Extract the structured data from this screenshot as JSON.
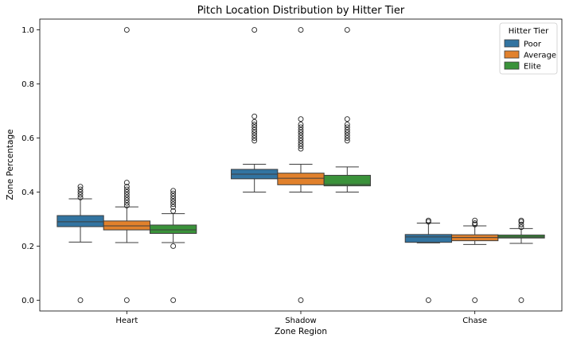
{
  "chart_data": {
    "type": "boxplot",
    "title": "Pitch Location Distribution by Hitter Tier",
    "xlabel": "Zone Region",
    "ylabel": "Zone Percentage",
    "ylim": [
      -0.04,
      1.04
    ],
    "yticks": [
      "0.0",
      "0.2",
      "0.4",
      "0.6",
      "0.8",
      "1.0"
    ],
    "categories": [
      "Heart",
      "Shadow",
      "Chase"
    ],
    "legend": {
      "title": "Hitter Tier",
      "placement": "top-right"
    },
    "colors": {
      "Poor": "#3274a1",
      "Average": "#e1812c",
      "Elite": "#3a923a"
    },
    "series": [
      {
        "name": "Poor",
        "boxes": [
          {
            "whisker_low": 0.215,
            "q1": 0.272,
            "median": 0.29,
            "q3": 0.313,
            "whisker_high": 0.375,
            "outliers": [
              0.0,
              0.38,
              0.39,
              0.4,
              0.41,
              0.42
            ]
          },
          {
            "whisker_low": 0.4,
            "q1": 0.449,
            "median": 0.466,
            "q3": 0.484,
            "whisker_high": 0.503,
            "outliers": [
              1.0,
              0.59,
              0.6,
              0.61,
              0.62,
              0.63,
              0.64,
              0.65,
              0.66,
              0.68
            ]
          },
          {
            "whisker_low": 0.212,
            "q1": 0.214,
            "median": 0.234,
            "q3": 0.243,
            "whisker_high": 0.285,
            "outliers": [
              0.0,
              0.29,
              0.295
            ]
          }
        ]
      },
      {
        "name": "Average",
        "boxes": [
          {
            "whisker_low": 0.213,
            "q1": 0.26,
            "median": 0.275,
            "q3": 0.293,
            "whisker_high": 0.345,
            "outliers": [
              0.0,
              1.0,
              0.35,
              0.36,
              0.37,
              0.38,
              0.39,
              0.4,
              0.41,
              0.42,
              0.435
            ]
          },
          {
            "whisker_low": 0.4,
            "q1": 0.427,
            "median": 0.451,
            "q3": 0.47,
            "whisker_high": 0.503,
            "outliers": [
              0.0,
              1.0,
              0.56,
              0.57,
              0.58,
              0.59,
              0.6,
              0.61,
              0.62,
              0.63,
              0.64,
              0.65,
              0.67
            ]
          },
          {
            "whisker_low": 0.206,
            "q1": 0.22,
            "median": 0.232,
            "q3": 0.242,
            "whisker_high": 0.275,
            "outliers": [
              0.0,
              0.28,
              0.285,
              0.295
            ]
          }
        ]
      },
      {
        "name": "Elite",
        "boxes": [
          {
            "whisker_low": 0.213,
            "q1": 0.247,
            "median": 0.26,
            "q3": 0.278,
            "whisker_high": 0.32,
            "outliers": [
              0.0,
              0.2,
              0.33,
              0.345,
              0.355,
              0.365,
              0.375,
              0.385,
              0.395,
              0.405
            ]
          },
          {
            "whisker_low": 0.4,
            "q1": 0.423,
            "median": 0.428,
            "q3": 0.462,
            "whisker_high": 0.493,
            "outliers": [
              1.0,
              0.59,
              0.6,
              0.61,
              0.62,
              0.63,
              0.64,
              0.65,
              0.67
            ]
          },
          {
            "whisker_low": 0.21,
            "q1": 0.23,
            "median": 0.234,
            "q3": 0.241,
            "whisker_high": 0.265,
            "outliers": [
              0.0,
              0.27,
              0.28,
              0.29,
              0.295
            ]
          }
        ]
      }
    ]
  }
}
